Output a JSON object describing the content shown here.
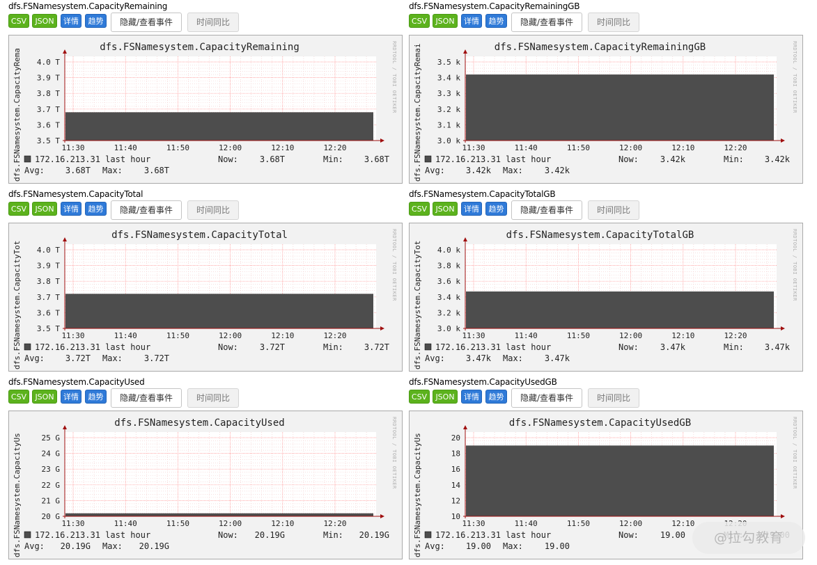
{
  "buttons": {
    "csv": "CSV",
    "json": "JSON",
    "detail": "详情",
    "trend": "趋势",
    "toggle_events": "隐藏/查看事件",
    "compare": "时间同比"
  },
  "vendor_text": "RRDTOOL / TOBI OETIKER",
  "watermark": "@拉勾教育",
  "colors": {
    "area": "#4d4d4d",
    "grid": "#ff8a8a",
    "axis": "#a01010",
    "green_button": "#5cb21d",
    "blue_button": "#2f7ad8"
  },
  "panels": [
    {
      "metric": "dfs.FSNamesystem.CapacityRemaining",
      "side_label": "dfs.FSNamesystem.CapacityRema",
      "host": "172.16.213.31 last hour",
      "now_label": "Now:",
      "now": "3.68T",
      "min_label": "Min:",
      "min": "3.68T",
      "avg_label": "Avg:",
      "avg": "3.68T",
      "max_label": "Max:",
      "max": "3.68T",
      "chart_data": {
        "type": "area",
        "title": "dfs.FSNamesystem.CapacityRemaining",
        "ylabel": "dfs.FSNamesystem.CapacityRema",
        "x_ticks": [
          "11:30",
          "11:40",
          "11:50",
          "12:00",
          "12:10",
          "12:20"
        ],
        "y_ticks": [
          "3.5 T",
          "3.6 T",
          "3.7 T",
          "3.8 T",
          "3.9 T",
          "4.0 T"
        ],
        "ylim": [
          3.5,
          4.0
        ],
        "series": [
          {
            "values": [
              3.68,
              3.68
            ]
          }
        ]
      }
    },
    {
      "metric": "dfs.FSNamesystem.CapacityRemainingGB",
      "side_label": "dfs.FSNamesystem.CapacityRemai",
      "host": "172.16.213.31 last hour",
      "now_label": "Now:",
      "now": "3.42k",
      "min_label": "Min:",
      "min": "3.42k",
      "avg_label": "Avg:",
      "avg": "3.42k",
      "max_label": "Max:",
      "max": "3.42k",
      "chart_data": {
        "type": "area",
        "title": "dfs.FSNamesystem.CapacityRemainingGB",
        "ylabel": "dfs.FSNamesystem.CapacityRemai",
        "x_ticks": [
          "11:30",
          "11:40",
          "11:50",
          "12:00",
          "12:10",
          "12:20"
        ],
        "y_ticks": [
          "3.0 k",
          "3.1 k",
          "3.2 k",
          "3.3 k",
          "3.4 k",
          "3.5 k"
        ],
        "ylim": [
          3.0,
          3.5
        ],
        "series": [
          {
            "values": [
              3.42,
              3.42
            ]
          }
        ]
      }
    },
    {
      "metric": "dfs.FSNamesystem.CapacityTotal",
      "side_label": "dfs.FSNamesystem.CapacityTot",
      "host": "172.16.213.31 last hour",
      "now_label": "Now:",
      "now": "3.72T",
      "min_label": "Min:",
      "min": "3.72T",
      "avg_label": "Avg:",
      "avg": "3.72T",
      "max_label": "Max:",
      "max": "3.72T",
      "chart_data": {
        "type": "area",
        "title": "dfs.FSNamesystem.CapacityTotal",
        "ylabel": "dfs.FSNamesystem.CapacityTot",
        "x_ticks": [
          "11:30",
          "11:40",
          "11:50",
          "12:00",
          "12:10",
          "12:20"
        ],
        "y_ticks": [
          "3.5 T",
          "3.6 T",
          "3.7 T",
          "3.8 T",
          "3.9 T",
          "4.0 T"
        ],
        "ylim": [
          3.5,
          4.0
        ],
        "series": [
          {
            "values": [
              3.72,
              3.72
            ]
          }
        ]
      }
    },
    {
      "metric": "dfs.FSNamesystem.CapacityTotalGB",
      "side_label": "dfs.FSNamesystem.CapacityTot",
      "host": "172.16.213.31 last hour",
      "now_label": "Now:",
      "now": "3.47k",
      "min_label": "Min:",
      "min": "3.47k",
      "avg_label": "Avg:",
      "avg": "3.47k",
      "max_label": "Max:",
      "max": "3.47k",
      "chart_data": {
        "type": "area",
        "title": "dfs.FSNamesystem.CapacityTotalGB",
        "ylabel": "dfs.FSNamesystem.CapacityTot",
        "x_ticks": [
          "11:30",
          "11:40",
          "11:50",
          "12:00",
          "12:10",
          "12:20"
        ],
        "y_ticks": [
          "3.0 k",
          "3.2 k",
          "3.4 k",
          "3.6 k",
          "3.8 k",
          "4.0 k"
        ],
        "ylim": [
          3.0,
          4.0
        ],
        "series": [
          {
            "values": [
              3.47,
              3.47
            ]
          }
        ]
      }
    },
    {
      "metric": "dfs.FSNamesystem.CapacityUsed",
      "side_label": "dfs.FSNamesystem.CapacityUs",
      "host": "172.16.213.31 last hour",
      "now_label": "Now:",
      "now": "20.19G",
      "min_label": "Min:",
      "min": "20.19G",
      "avg_label": "Avg:",
      "avg": "20.19G",
      "max_label": "Max:",
      "max": "20.19G",
      "chart_data": {
        "type": "area",
        "title": "dfs.FSNamesystem.CapacityUsed",
        "ylabel": "dfs.FSNamesystem.CapacityUs",
        "x_ticks": [
          "11:30",
          "11:40",
          "11:50",
          "12:00",
          "12:10",
          "12:20"
        ],
        "y_ticks": [
          "20 G",
          "21 G",
          "22 G",
          "23 G",
          "24 G",
          "25 G"
        ],
        "ylim": [
          20,
          25
        ],
        "series": [
          {
            "values": [
              20.19,
              20.19
            ]
          }
        ]
      }
    },
    {
      "metric": "dfs.FSNamesystem.CapacityUsedGB",
      "side_label": "dfs.FSNamesystem.CapacityUs",
      "host": "172.16.213.31 last hour",
      "now_label": "Now:",
      "now": "19.00",
      "min_label": "Min:",
      "min": "19.00",
      "avg_label": "Avg:",
      "avg": "19.00",
      "max_label": "Max:",
      "max": "19.00",
      "chart_data": {
        "type": "area",
        "title": "dfs.FSNamesystem.CapacityUsedGB",
        "ylabel": "dfs.FSNamesystem.CapacityUs",
        "x_ticks": [
          "11:30",
          "11:40",
          "11:50",
          "12:00",
          "12:10",
          "12:20"
        ],
        "y_ticks": [
          "10",
          "12",
          "14",
          "16",
          "18",
          "20"
        ],
        "ylim": [
          10,
          20
        ],
        "series": [
          {
            "values": [
              19.0,
              19.0
            ]
          }
        ]
      }
    }
  ]
}
